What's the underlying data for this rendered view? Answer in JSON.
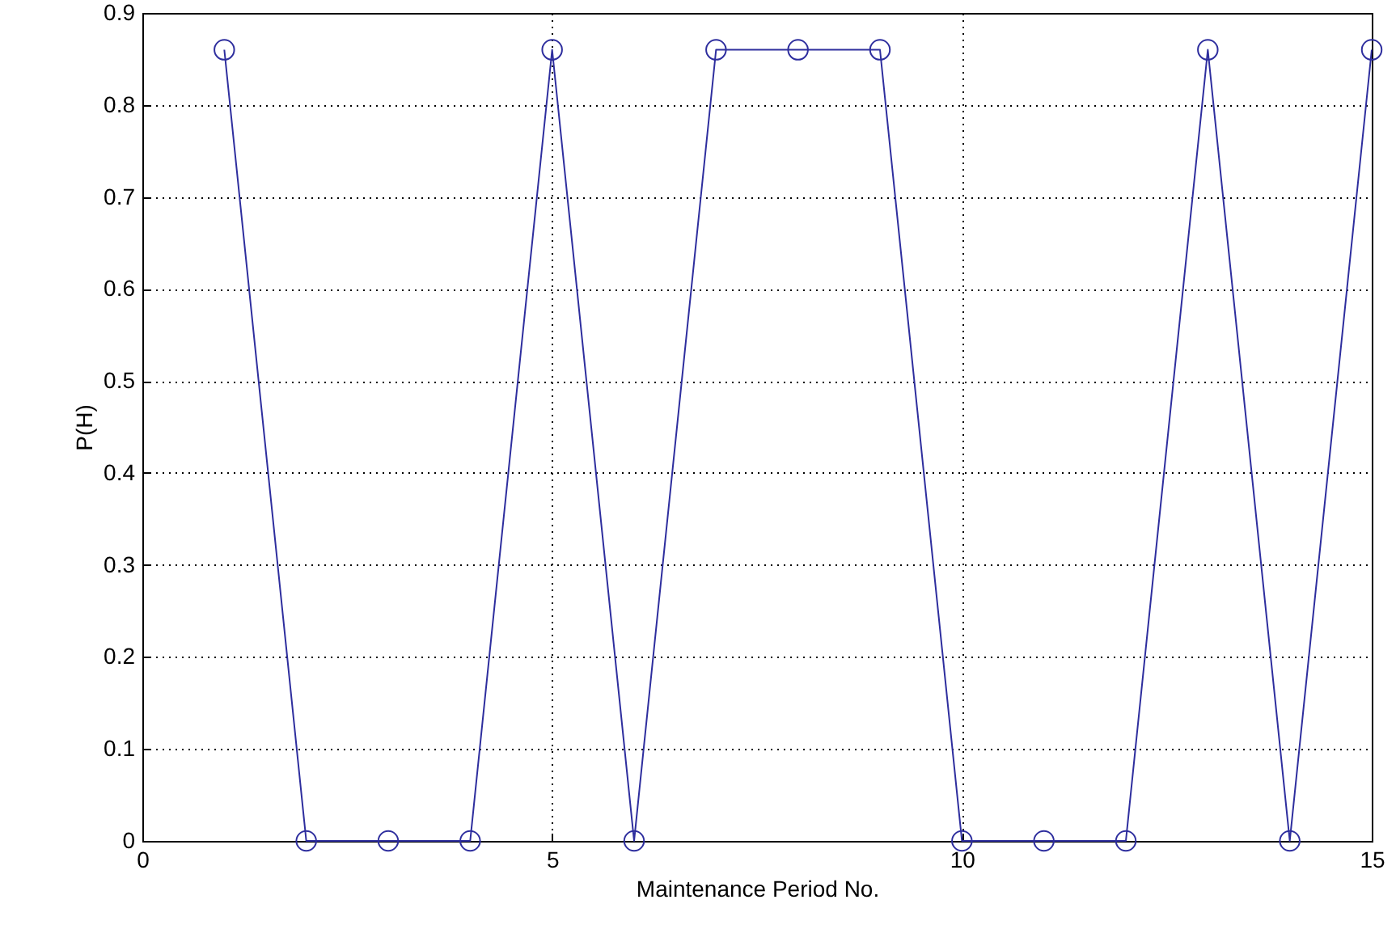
{
  "chart_data": {
    "type": "line",
    "xlabel": "Maintenance Period No.",
    "ylabel": "P(H)",
    "x": [
      1,
      2,
      3,
      4,
      5,
      6,
      7,
      8,
      9,
      10,
      11,
      12,
      13,
      14,
      15
    ],
    "series": [
      {
        "color": "#2e2e9e",
        "values": [
          0.86,
          0,
          0,
          0,
          0.86,
          0,
          0.86,
          0.86,
          0.86,
          0,
          0,
          0,
          0.86,
          0,
          0.86
        ]
      }
    ],
    "xlim": [
      0,
      15
    ],
    "xticks": [
      0,
      5,
      10,
      15
    ],
    "ylim": [
      0,
      0.9
    ],
    "yticks": [
      0,
      0.1,
      0.2,
      0.3,
      0.4,
      0.5,
      0.6,
      0.7,
      0.8,
      0.9
    ],
    "grid": true,
    "marker": "circle",
    "line_style": "solid"
  }
}
